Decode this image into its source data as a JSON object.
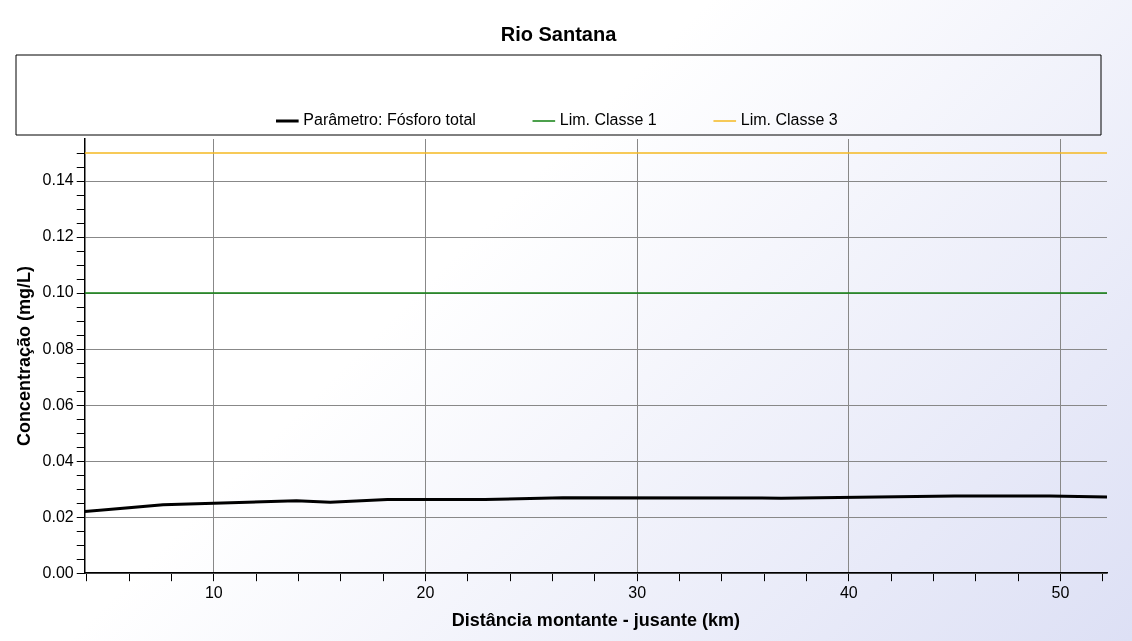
{
  "chart_data": {
    "type": "line",
    "title": "Rio Santana",
    "xlabel": "Distância montante - jusante (km)",
    "ylabel": "Concentração (mg/L)",
    "xlim": [
      3.9,
      52.2
    ],
    "ylim": [
      0,
      0.155
    ],
    "xticks": [
      {
        "value": 4,
        "label": null
      },
      {
        "value": 6,
        "label": null
      },
      {
        "value": 8,
        "label": null
      },
      10,
      {
        "value": 12,
        "label": null
      },
      {
        "value": 14,
        "label": null
      },
      {
        "value": 16,
        "label": null
      },
      {
        "value": 18,
        "label": null
      },
      20,
      {
        "value": 22,
        "label": null
      },
      {
        "value": 24,
        "label": null
      },
      {
        "value": 26,
        "label": null
      },
      {
        "value": 28,
        "label": null
      },
      30,
      {
        "value": 32,
        "label": null
      },
      {
        "value": 34,
        "label": null
      },
      {
        "value": 36,
        "label": null
      },
      {
        "value": 38,
        "label": null
      },
      40,
      {
        "value": 42,
        "label": null
      },
      {
        "value": 44,
        "label": null
      },
      {
        "value": 46,
        "label": null
      },
      {
        "value": 48,
        "label": null
      },
      50,
      {
        "value": 52,
        "label": null
      }
    ],
    "yticks": [
      {
        "value": 0,
        "label": "0.00"
      },
      {
        "value": 0.005,
        "label": null
      },
      {
        "value": 0.01,
        "label": null
      },
      {
        "value": 0.015,
        "label": null
      },
      {
        "value": 0.02,
        "label": "0.02"
      },
      {
        "value": 0.025,
        "label": null
      },
      {
        "value": 0.03,
        "label": null
      },
      {
        "value": 0.035,
        "label": null
      },
      {
        "value": 0.04,
        "label": "0.04"
      },
      {
        "value": 0.045,
        "label": null
      },
      {
        "value": 0.05,
        "label": null
      },
      {
        "value": 0.055,
        "label": null
      },
      {
        "value": 0.06,
        "label": "0.06"
      },
      {
        "value": 0.065,
        "label": null
      },
      {
        "value": 0.07,
        "label": null
      },
      {
        "value": 0.075,
        "label": null
      },
      {
        "value": 0.08,
        "label": "0.08"
      },
      {
        "value": 0.085,
        "label": null
      },
      {
        "value": 0.09,
        "label": null
      },
      {
        "value": 0.095,
        "label": null
      },
      {
        "value": 0.1,
        "label": "0.10"
      },
      {
        "value": 0.105,
        "label": null
      },
      {
        "value": 0.11,
        "label": null
      },
      {
        "value": 0.115,
        "label": null
      },
      {
        "value": 0.12,
        "label": "0.12"
      },
      {
        "value": 0.125,
        "label": null
      },
      {
        "value": 0.13,
        "label": null
      },
      {
        "value": 0.135,
        "label": null
      },
      {
        "value": 0.14,
        "label": "0.14"
      },
      {
        "value": 0.145,
        "label": null
      },
      {
        "value": 0.15,
        "label": null
      }
    ],
    "grid": true,
    "legend": "top",
    "marker": "none",
    "line_style": "solid",
    "series": [
      {
        "name": "Parâmetro: Fósforo total",
        "color": "#000000",
        "x": [
          3.9,
          7.6,
          10,
          13.9,
          15.5,
          18.2,
          22.8,
          26.5,
          36.8,
          45,
          49.5,
          52.2
        ],
        "values": [
          0.022,
          0.0244,
          0.025,
          0.0259,
          0.0253,
          0.0263,
          0.0263,
          0.0269,
          0.0268,
          0.0276,
          0.0276,
          0.0272
        ]
      },
      {
        "name": "Lim. Classe 1",
        "color": "#108010",
        "x": [
          3.9,
          52.2
        ],
        "values": [
          0.1,
          0.1
        ]
      },
      {
        "name": "Lim. Classe 3",
        "color": "#f5b820",
        "x": [
          3.9,
          52.2
        ],
        "values": [
          0.15,
          0.15
        ]
      }
    ]
  }
}
